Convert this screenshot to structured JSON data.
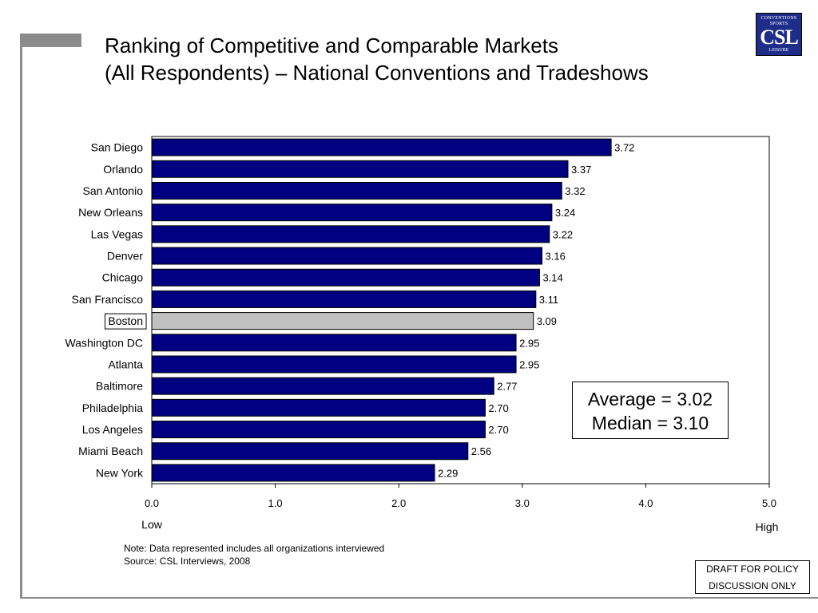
{
  "title": {
    "line1": "Ranking of Competitive and Comparable Markets",
    "line2": "(All Respondents) – National Conventions and Tradeshows"
  },
  "logo": {
    "top_text": "CONVENTIONS SPORTS",
    "main_text": "CSL",
    "bottom_text": "LEISURE",
    "color": "#1f2d8a"
  },
  "chart_data": {
    "type": "bar",
    "orientation": "horizontal",
    "categories": [
      "San Diego",
      "Orlando",
      "San Antonio",
      "New Orleans",
      "Las Vegas",
      "Denver",
      "Chicago",
      "San Francisco",
      "Boston",
      "Washington DC",
      "Atlanta",
      "Baltimore",
      "Philadelphia",
      "Los Angeles",
      "Miami Beach",
      "New York"
    ],
    "values": [
      3.72,
      3.37,
      3.32,
      3.24,
      3.22,
      3.16,
      3.14,
      3.11,
      3.09,
      2.95,
      2.95,
      2.77,
      2.7,
      2.7,
      2.56,
      2.29
    ],
    "value_labels": [
      "3.72",
      "3.37",
      "3.32",
      "3.24",
      "3.22",
      "3.16",
      "3.14",
      "3.11",
      "3.09",
      "2.95",
      "2.95",
      "2.77",
      "2.70",
      "2.70",
      "2.56",
      "2.29"
    ],
    "highlighted_category": "Boston",
    "xlim": [
      0,
      5
    ],
    "xticks": [
      0,
      1,
      2,
      3,
      4,
      5
    ],
    "xtick_labels": [
      "0.0",
      "1.0",
      "2.0",
      "3.0",
      "4.0",
      "5.0"
    ],
    "x_low_label": "Low",
    "x_high_label": "High",
    "grid": false,
    "bar_color": "#000080",
    "highlight_color": "#c0c0c0",
    "annotation": {
      "average": "Average = 3.02",
      "median": "Median = 3.10"
    }
  },
  "notes": {
    "note": "Note: Data represented includes all organizations interviewed",
    "source": "Source:  CSL Interviews, 2008"
  },
  "draft": {
    "line1": "DRAFT FOR POLICY",
    "line2": "DISCUSSION ONLY"
  }
}
